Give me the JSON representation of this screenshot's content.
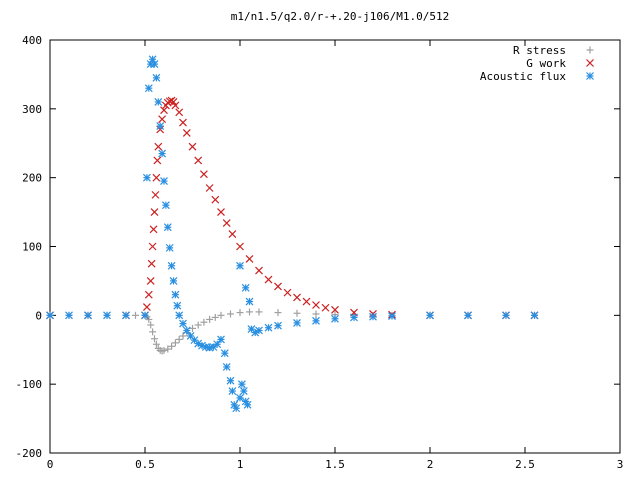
{
  "chart_data": {
    "type": "scatter",
    "title": "m1/n1.5/q2.0/r-+.20-j106/M1.0/512",
    "xlabel": "",
    "ylabel": "",
    "xlim": [
      0,
      3
    ],
    "ylim": [
      -200,
      400
    ],
    "x_ticks": [
      0,
      0.5,
      1,
      1.5,
      2,
      2.5,
      3
    ],
    "x_tick_labels": [
      "0",
      "0.5",
      "1",
      "1.5",
      "2",
      "2.5",
      "3"
    ],
    "y_ticks": [
      -200,
      -100,
      0,
      100,
      200,
      300,
      400
    ],
    "y_tick_labels": [
      "-200",
      "-100",
      "0",
      "100",
      "200",
      "300",
      "400"
    ],
    "grid": false,
    "legend_position": "top-right",
    "series": [
      {
        "name": "R stress",
        "marker": "plus",
        "color": "#a0a0a0",
        "points": [
          [
            0.0,
            0
          ],
          [
            0.1,
            0
          ],
          [
            0.2,
            0
          ],
          [
            0.3,
            0
          ],
          [
            0.4,
            0
          ],
          [
            0.45,
            0
          ],
          [
            0.5,
            0
          ],
          [
            0.51,
            -2
          ],
          [
            0.52,
            -6
          ],
          [
            0.53,
            -14
          ],
          [
            0.54,
            -24
          ],
          [
            0.55,
            -34
          ],
          [
            0.56,
            -42
          ],
          [
            0.57,
            -48
          ],
          [
            0.58,
            -51
          ],
          [
            0.59,
            -52
          ],
          [
            0.6,
            -51
          ],
          [
            0.62,
            -49
          ],
          [
            0.64,
            -45
          ],
          [
            0.66,
            -40
          ],
          [
            0.68,
            -35
          ],
          [
            0.7,
            -30
          ],
          [
            0.72,
            -25
          ],
          [
            0.75,
            -19
          ],
          [
            0.78,
            -14
          ],
          [
            0.81,
            -10
          ],
          [
            0.84,
            -6
          ],
          [
            0.87,
            -3
          ],
          [
            0.9,
            0
          ],
          [
            0.95,
            2
          ],
          [
            1.0,
            4
          ],
          [
            1.05,
            5
          ],
          [
            1.1,
            5
          ],
          [
            1.2,
            4
          ],
          [
            1.3,
            3
          ],
          [
            1.4,
            2
          ],
          [
            1.5,
            1
          ],
          [
            1.6,
            1
          ],
          [
            1.7,
            0
          ],
          [
            1.8,
            0
          ],
          [
            2.0,
            0
          ],
          [
            2.2,
            0
          ],
          [
            2.4,
            0
          ],
          [
            2.55,
            0
          ]
        ]
      },
      {
        "name": "G work",
        "marker": "cross",
        "color": "#cc2222",
        "points": [
          [
            0.0,
            0
          ],
          [
            0.2,
            0
          ],
          [
            0.4,
            0
          ],
          [
            0.5,
            0
          ],
          [
            0.51,
            12
          ],
          [
            0.52,
            30
          ],
          [
            0.53,
            50
          ],
          [
            0.535,
            75
          ],
          [
            0.54,
            100
          ],
          [
            0.545,
            125
          ],
          [
            0.55,
            150
          ],
          [
            0.555,
            175
          ],
          [
            0.56,
            200
          ],
          [
            0.565,
            225
          ],
          [
            0.57,
            245
          ],
          [
            0.58,
            270
          ],
          [
            0.59,
            285
          ],
          [
            0.6,
            298
          ],
          [
            0.61,
            305
          ],
          [
            0.62,
            309
          ],
          [
            0.63,
            311
          ],
          [
            0.64,
            312
          ],
          [
            0.65,
            310
          ],
          [
            0.66,
            305
          ],
          [
            0.68,
            295
          ],
          [
            0.7,
            280
          ],
          [
            0.72,
            265
          ],
          [
            0.75,
            245
          ],
          [
            0.78,
            225
          ],
          [
            0.81,
            205
          ],
          [
            0.84,
            185
          ],
          [
            0.87,
            168
          ],
          [
            0.9,
            150
          ],
          [
            0.93,
            134
          ],
          [
            0.96,
            118
          ],
          [
            1.0,
            100
          ],
          [
            1.05,
            82
          ],
          [
            1.1,
            65
          ],
          [
            1.15,
            52
          ],
          [
            1.2,
            42
          ],
          [
            1.25,
            33
          ],
          [
            1.3,
            26
          ],
          [
            1.35,
            20
          ],
          [
            1.4,
            15
          ],
          [
            1.45,
            11
          ],
          [
            1.5,
            8
          ],
          [
            1.6,
            4
          ],
          [
            1.7,
            2
          ],
          [
            1.8,
            1
          ],
          [
            2.0,
            0
          ],
          [
            2.2,
            0
          ],
          [
            2.4,
            0
          ],
          [
            2.55,
            0
          ]
        ]
      },
      {
        "name": "Acoustic flux",
        "marker": "star",
        "color": "#2a8fe0",
        "points": [
          [
            0.0,
            0
          ],
          [
            0.1,
            0
          ],
          [
            0.2,
            0
          ],
          [
            0.3,
            0
          ],
          [
            0.4,
            0
          ],
          [
            0.5,
            0
          ],
          [
            0.51,
            200
          ],
          [
            0.52,
            330
          ],
          [
            0.53,
            365
          ],
          [
            0.54,
            372
          ],
          [
            0.55,
            365
          ],
          [
            0.56,
            345
          ],
          [
            0.57,
            310
          ],
          [
            0.58,
            275
          ],
          [
            0.59,
            235
          ],
          [
            0.6,
            195
          ],
          [
            0.61,
            160
          ],
          [
            0.62,
            128
          ],
          [
            0.63,
            98
          ],
          [
            0.64,
            72
          ],
          [
            0.65,
            50
          ],
          [
            0.66,
            30
          ],
          [
            0.67,
            14
          ],
          [
            0.68,
            0
          ],
          [
            0.7,
            -12
          ],
          [
            0.72,
            -22
          ],
          [
            0.74,
            -30
          ],
          [
            0.76,
            -36
          ],
          [
            0.78,
            -41
          ],
          [
            0.8,
            -44
          ],
          [
            0.82,
            -46
          ],
          [
            0.84,
            -47
          ],
          [
            0.86,
            -46
          ],
          [
            0.88,
            -42
          ],
          [
            0.9,
            -35
          ],
          [
            0.92,
            -55
          ],
          [
            0.93,
            -75
          ],
          [
            0.95,
            -95
          ],
          [
            0.96,
            -110
          ],
          [
            0.97,
            -130
          ],
          [
            0.98,
            -135
          ],
          [
            1.0,
            -120
          ],
          [
            1.01,
            -100
          ],
          [
            1.02,
            -110
          ],
          [
            1.03,
            -125
          ],
          [
            1.04,
            -130
          ],
          [
            1.0,
            72
          ],
          [
            1.03,
            40
          ],
          [
            1.05,
            20
          ],
          [
            1.06,
            -20
          ],
          [
            1.08,
            -25
          ],
          [
            1.1,
            -22
          ],
          [
            1.15,
            -18
          ],
          [
            1.2,
            -15
          ],
          [
            1.3,
            -11
          ],
          [
            1.4,
            -8
          ],
          [
            1.5,
            -5
          ],
          [
            1.6,
            -3
          ],
          [
            1.7,
            -2
          ],
          [
            1.8,
            -1
          ],
          [
            2.0,
            0
          ],
          [
            2.2,
            0
          ],
          [
            2.4,
            0
          ],
          [
            2.55,
            0
          ]
        ]
      }
    ]
  }
}
